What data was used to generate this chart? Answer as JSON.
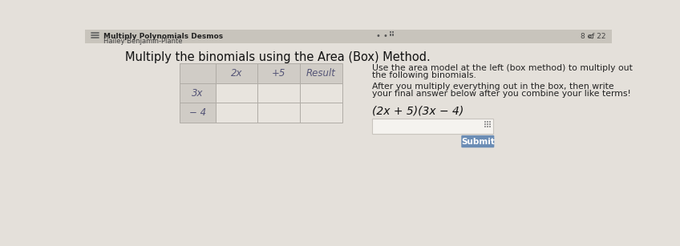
{
  "bg_color": "#d9d5ce",
  "bg_color_main": "#e4e0da",
  "header_text": "Multiply the binomials using the Area (Box) Method.",
  "header_fontsize": 10.5,
  "top_left_text": "Hailey Benjamin-Plante",
  "top_banner_text": "Multiply Polynomials Desmos",
  "page_text": "8 of 22",
  "table": {
    "col_headers": [
      "2x",
      "+5",
      "Result"
    ],
    "row_headers": [
      "3x",
      "− 4"
    ],
    "corner_bg": "#d0ccc6",
    "header_bg": "#d0ccc6",
    "data_bg": "#e8e4de",
    "border_color": "#b0aca6",
    "text_color": "#555577",
    "fontsize": 8.5
  },
  "instructions_line1": "Use the area model at the left (box method) to multiply out",
  "instructions_line2": "the following binomials.",
  "instructions_line3": "After you multiply everything out in the box, then write",
  "instructions_line4": "your final answer below after you combine your like terms!",
  "equation": "(2x + 5)(3x − 4)",
  "equation_fontsize": 10,
  "instructions_fontsize": 7.8,
  "submit_btn_color": "#6b8db5",
  "submit_text": "Submit",
  "input_box_color": "#f5f3ef",
  "input_box_border": "#c8c4be"
}
